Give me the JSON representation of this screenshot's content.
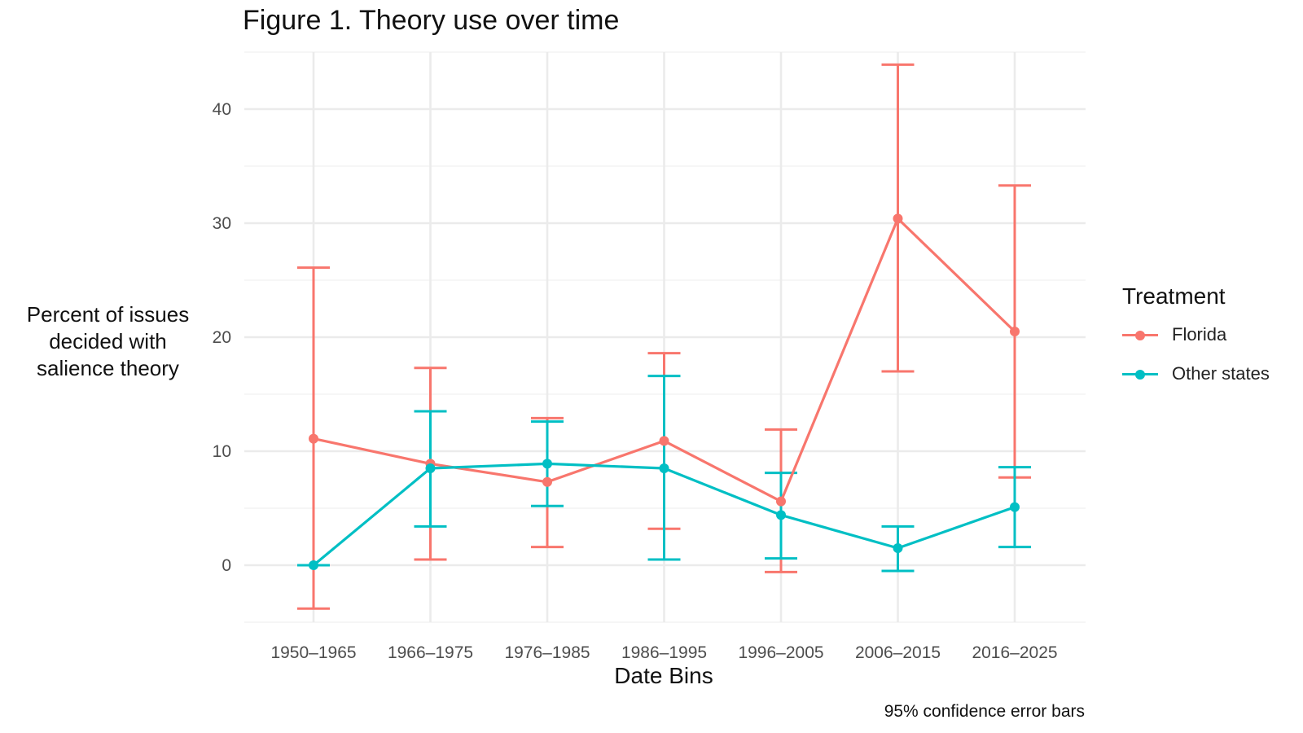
{
  "chart_data": {
    "type": "line",
    "title": "Figure 1. Theory use over time",
    "xlabel": "Date Bins",
    "ylabel_lines": [
      "Percent of issues",
      "decided with",
      "salience theory"
    ],
    "caption": "95% confidence error bars",
    "categories": [
      "1950–1965",
      "1966–1975",
      "1976–1985",
      "1986–1995",
      "1996–2005",
      "2006–2015",
      "2016–2025"
    ],
    "ylim": [
      -5,
      45
    ],
    "yticks": [
      0,
      10,
      20,
      30,
      40
    ],
    "grid": true,
    "legend": {
      "title": "Treatment",
      "placement": "right"
    },
    "series": [
      {
        "name": "Florida",
        "color": "#F8766D",
        "values": [
          11.1,
          8.9,
          7.3,
          10.9,
          5.6,
          30.4,
          20.5
        ],
        "ci_low": [
          -3.8,
          0.5,
          1.6,
          3.2,
          -0.6,
          17.0,
          7.7
        ],
        "ci_high": [
          26.1,
          17.3,
          12.9,
          18.6,
          11.9,
          43.9,
          33.3
        ]
      },
      {
        "name": "Other states",
        "color": "#00BFC4",
        "values": [
          0.0,
          8.5,
          8.9,
          8.5,
          4.4,
          1.5,
          5.1
        ],
        "ci_low": [
          0.0,
          3.4,
          5.2,
          0.5,
          0.6,
          -0.5,
          1.6
        ],
        "ci_high": [
          0.0,
          13.5,
          12.6,
          16.6,
          8.1,
          3.4,
          8.6
        ]
      }
    ]
  }
}
